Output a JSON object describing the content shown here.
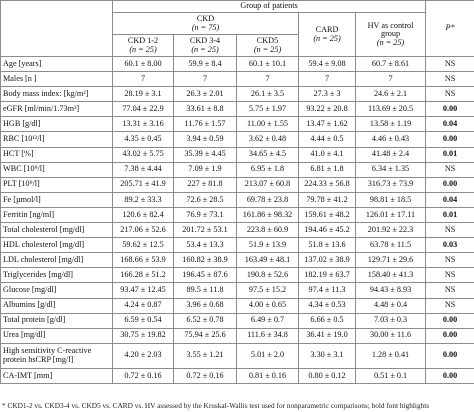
{
  "header": {
    "group_of_patients": "Group of patients",
    "ckd": "CKD",
    "ckd_n": "(n = 75)",
    "card": "CARD",
    "card_n": "(n = 25)",
    "hv_line1": "HV as control",
    "hv_line2": "group",
    "hv_n": "(n = 25)",
    "p": "P*",
    "sub": [
      {
        "name": "CKD 1-2",
        "n": "(n = 25)"
      },
      {
        "name": "CKD 3-4",
        "n": "(n = 25)"
      },
      {
        "name": "CKD5",
        "n": "(n = 25)"
      }
    ]
  },
  "rows": [
    {
      "label": "Age [years]",
      "c1": "60.1 ± 8.00",
      "c2": "59.9 ± 8.4",
      "c3": "60.1 ± 10.1",
      "card": "59.4 ± 9.08",
      "hv": "60.7 ± 8.61",
      "p": "NS",
      "bold": false
    },
    {
      "label": "Males [n ]",
      "c1": "7",
      "c2": "7",
      "c3": "7",
      "card": "7",
      "hv": "7",
      "p": "NS",
      "bold": false
    },
    {
      "label": "Body mass index: [kg/m²]",
      "c1": "28.19 ± 3.1",
      "c2": "26.3 ± 2.01",
      "c3": "26.1 ± 3.5",
      "card": "27.3 ± 3",
      "hv": "24.6 ± 2.1",
      "p": "NS",
      "bold": false
    },
    {
      "label": "eGFR [ml/min/1.73m²]",
      "c1": "77.04 ± 22.9",
      "c2": "33.61 ± 8.8",
      "c3": "5.75 ± 1.97",
      "card": "93.22 ± 20.8",
      "hv": "113.69 ± 20.5",
      "p": "0.00",
      "bold": true
    },
    {
      "label": "HGB [g/dl]",
      "c1": "13.31 ± 3.16",
      "c2": "11.76 ± 1.57",
      "c3": "11.00 ± 1.55",
      "card": "13.47 ± 1.62",
      "hv": "13.58 ± 1.19",
      "p": "0.04",
      "bold": true
    },
    {
      "label": "RBC [10¹²/l]",
      "c1": "4.35 ± 0.45",
      "c2": "3.94 ± 0.59",
      "c3": "3.62 ± 0.48",
      "card": "4.44 ± 0.5",
      "hv": "4.46 ± 0.43",
      "p": "0.00",
      "bold": true
    },
    {
      "label": "HCT [%]",
      "c1": "43.02 ± 5.75",
      "c2": "35.39 ± 4.45",
      "c3": "34.65 ± 4.5",
      "card": "41.0 ± 4.1",
      "hv": "41.48 ± 2.4",
      "p": "0.01",
      "bold": true
    },
    {
      "label": "WBC [10⁹/l]",
      "c1": "7.38 ± 4.44",
      "c2": "7.09 ± 1.9",
      "c3": "6.95 ± 1.8",
      "card": "6.81 ± 1.8",
      "hv": "6.34 ± 1.35",
      "p": "NS",
      "bold": false
    },
    {
      "label": "PLT [10⁹/l]",
      "c1": "205.71 ± 41.9",
      "c2": "227 ± 81.8",
      "c3": "213.07 ± 60.8",
      "card": "224.33 ± 56.8",
      "hv": "316.73 ± 73.9",
      "p": "0.00",
      "bold": true
    },
    {
      "label": "Fe [µmol/l]",
      "c1": "89.2 ± 33.3",
      "c2": "72.6 ± 28.5",
      "c3": "69.78 ± 23.8",
      "card": "79.78 ± 41.2",
      "hv": "98.81 ± 18.5",
      "p": "0.04",
      "bold": true
    },
    {
      "label": "Ferritin [ng/ml]",
      "c1": "120.6 ± 82.4",
      "c2": "76.9 ± 73.1",
      "c3": "161.86 ± 98.32",
      "card": "159.61 ± 48.2",
      "hv": "126.01 ± 17.11",
      "p": "0.01",
      "bold": true
    },
    {
      "label": "Total cholesterol [mg/dl]",
      "c1": "217.06 ± 52.6",
      "c2": "201.72 ± 53.1",
      "c3": "223.8 ± 60.9",
      "card": "194.46 ± 45.2",
      "hv": "201.92 ± 22.3",
      "p": "NS",
      "bold": false
    },
    {
      "label": "HDL cholesterol [mg/dl]",
      "c1": "59.62 ± 12.5",
      "c2": "53.4 ± 13.3",
      "c3": "51.9 ± 13.9",
      "card": "51.8 ± 13.6",
      "hv": "63.78 ± 11.5",
      "p": "0.03",
      "bold": true
    },
    {
      "label": "LDL cholesterol [mg/dl]",
      "c1": "168.66 ± 53.9",
      "c2": "160.82 ± 38.9",
      "c3": "163.49 ± 48.1",
      "card": "137.02 ± 38.9",
      "hv": "129.71 ± 29.6",
      "p": "NS",
      "bold": false
    },
    {
      "label": "Triglycerides [mg/dl]",
      "c1": "166.28 ± 51.2",
      "c2": "196.45 ± 87.6",
      "c3": "190.8 ± 52.6",
      "card": "182.19 ± 63.7",
      "hv": "158.40 ± 41.3",
      "p": "NS",
      "bold": false
    },
    {
      "label": "Glucose [mg/dl]",
      "c1": "93.47 ± 12.45",
      "c2": "89.5 ± 11.8",
      "c3": "97.5 ± 15.2",
      "card": "97.4 ± 11.3",
      "hv": "94.43 ± 8.93",
      "p": "NS",
      "bold": false
    },
    {
      "label": "Albumins [g/dl]",
      "c1": "4.24 ± 0.87",
      "c2": "3.96 ± 0.68",
      "c3": "4.00 ± 0.65",
      "card": "4.34 ± 0.53",
      "hv": "4.48 ± 0.4",
      "p": "NS",
      "bold": false
    },
    {
      "label": "Total protein [g/dl]",
      "c1": "6.59 ± 0.54",
      "c2": "6.52 ± 0.78",
      "c3": "6.49 ± 0.7",
      "card": "6.66 ± 0.5",
      "hv": "7.03 ± 0.3",
      "p": "0.00",
      "bold": true
    },
    {
      "label": "Urea [mg/dl]",
      "c1": "30.75 ± 19.82",
      "c2": "75.94 ± 25.6",
      "c3": "111.6 ± 34.8",
      "card": "36.41 ± 19.0",
      "hv": "30.00 ± 11.6",
      "p": "0.00",
      "bold": true
    },
    {
      "label": "High sensitivity C-reactive protein hsCRP [mg/l]",
      "c1": "4.20 ± 2.03",
      "c2": "3.55 ± 1.21",
      "c3": "5.01 ± 2.0",
      "card": "3.30 ± 3.1",
      "hv": "1.28 ± 0.41",
      "p": "0.00",
      "bold": true,
      "tall": true
    },
    {
      "label": "CA-IMT [mm]",
      "c1": "0.72 ± 0.16",
      "c2": "0.72 ± 0.16",
      "c3": "0.81 ± 0.16",
      "card": "0.80 ± 0.12",
      "hv": "0.51 ± 0.1",
      "p": "0.00",
      "bold": true
    }
  ],
  "footnote": "* CKD1-2 vs. CKD3-4 vs. CKD5 vs. CARD vs. HV assessed by the Kruskal-Wallis test used for nonparametric comparisons; bold font highlights"
}
